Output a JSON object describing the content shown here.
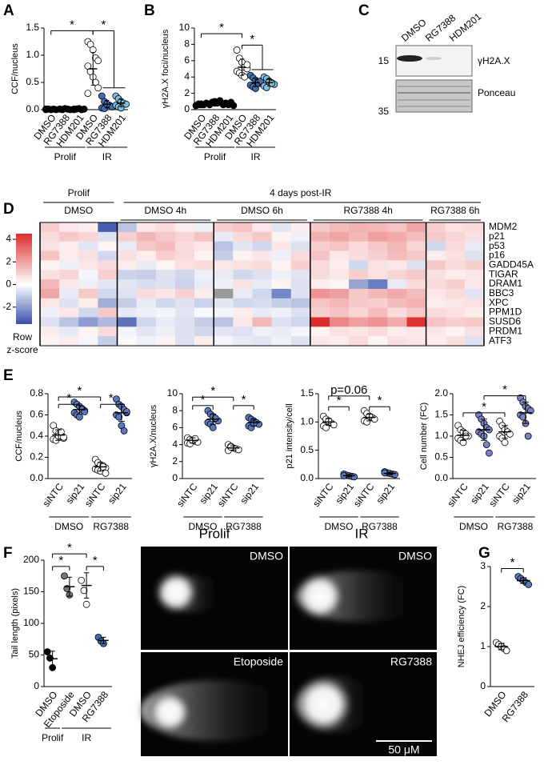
{
  "panel_labels": [
    "A",
    "B",
    "C",
    "D",
    "E",
    "F",
    "G"
  ],
  "chart_data": [
    {
      "type": "dot",
      "y_label": "CCF/nucleus",
      "ylim": [
        0,
        1.5
      ],
      "yticks": [
        {
          "value": 0,
          "label": "0.0"
        },
        0.5,
        {
          "value": 1,
          "label": "1.0"
        },
        1.5
      ],
      "categories": [
        "DMSO",
        "RG7388",
        "HDM201",
        "DMSO",
        "RG7388",
        "HDM201"
      ],
      "groups": [
        "Prolif",
        "IR"
      ],
      "colors": [
        "#000000",
        "#000000",
        "#000000",
        "#ffffff",
        "#3f6fb0",
        "#7fbfe0"
      ],
      "values": [
        [
          0,
          0.01,
          0,
          0.01,
          0,
          0.01
        ],
        [
          0.01,
          0,
          0.02,
          0.01,
          0,
          0.01
        ],
        [
          0,
          0.01,
          0.02,
          0,
          0.01,
          0.01
        ],
        [
          1.25,
          1.2,
          1.1,
          0.95,
          0.9,
          0.8,
          0.7,
          0.6,
          0.5,
          0.4,
          0.3,
          0.7
        ],
        [
          0.25,
          0.15,
          0.1,
          0.08,
          0.05,
          0.03,
          0.02,
          0.1
        ],
        [
          0.25,
          0.2,
          0.15,
          0.12,
          0.1,
          0.08,
          0.05,
          0.03
        ]
      ],
      "mean": [
        0.01,
        0.01,
        0.01,
        0.75,
        0.1,
        0.12
      ],
      "sd": [
        0.005,
        0.005,
        0.005,
        0.3,
        0.07,
        0.07
      ],
      "annotations": [
        "*",
        "*"
      ]
    },
    {
      "type": "dot",
      "y_label": "γH2A.X foci/nucleus",
      "ylim": [
        0,
        10
      ],
      "yticks": [
        0,
        2,
        4,
        6,
        8,
        10
      ],
      "categories": [
        "DMSO",
        "RG7388",
        "HDM201",
        "DMSO",
        "RG7388",
        "HDM201"
      ],
      "groups": [
        "Prolif",
        "IR"
      ],
      "colors": [
        "#000000",
        "#000000",
        "#000000",
        "#ffffff",
        "#3f6fb0",
        "#7fbfe0"
      ],
      "values": [
        [
          0.5,
          0.6,
          0.7,
          0.6,
          0.8,
          0.5,
          0.7,
          0.6
        ],
        [
          0.7,
          0.9,
          1.0,
          0.8,
          1.1,
          0.6,
          0.9,
          0.8
        ],
        [
          0.6,
          0.8,
          0.7,
          0.9,
          0.5,
          0.7,
          0.8,
          0.6
        ],
        [
          7.3,
          6.3,
          5.8,
          5.2,
          5.0,
          4.7,
          4.5,
          4.2,
          4.0,
          5.5
        ],
        [
          4.2,
          3.9,
          3.6,
          3.4,
          3.2,
          3.0,
          2.8,
          2.6,
          3.3,
          3.5
        ],
        [
          4.0,
          3.8,
          3.5,
          3.3,
          3.1,
          2.9,
          2.7,
          3.4,
          3.2
        ]
      ],
      "mean": [
        0.6,
        0.85,
        0.7,
        5.2,
        3.3,
        3.3
      ],
      "sd": [
        0.1,
        0.15,
        0.12,
        1.0,
        0.5,
        0.4
      ],
      "annotations": [
        "*",
        "*"
      ]
    },
    {
      "type": "heatmap",
      "rows": [
        "MDM2",
        "p21",
        "p53",
        "p16",
        "GADD45A",
        "TIGAR",
        "DRAM1",
        "BBC3",
        "XPC",
        "PPM1D",
        "SUSD6",
        "PRDM1",
        "ATF3"
      ],
      "headers": [
        "Prolif",
        "4 days post-IR"
      ],
      "zlim": [
        -3.5,
        4.5
      ],
      "zticks": [
        4,
        2,
        0,
        -2
      ],
      "colorbar_label": [
        "Row",
        "z-score"
      ],
      "blocks": [
        {
          "label": "DMSO",
          "values": [
            [
              0.8,
              0.4,
              0.3,
              -3.2
            ],
            [
              0.6,
              0.9,
              0.7,
              -0.6
            ],
            [
              0.5,
              0.3,
              -0.5,
              0.2
            ],
            [
              1.0,
              0.3,
              0.5,
              -0.8
            ],
            [
              0.2,
              -0.3,
              0.4,
              0.6
            ],
            [
              0.5,
              0.7,
              -0.2,
              0.8
            ],
            [
              1.2,
              0.4,
              -0.3,
              -0.5
            ],
            [
              1.5,
              -0.4,
              0.9,
              -0.8
            ],
            [
              0.4,
              -0.6,
              0.3,
              -1.6
            ],
            [
              -0.3,
              0.4,
              -0.8,
              0.9
            ],
            [
              -0.6,
              -1.2,
              -2.0,
              -1.4
            ],
            [
              0.3,
              -0.4,
              0.2,
              0.6
            ],
            [
              0.2,
              0.3,
              -0.2,
              -1.0
            ]
          ]
        },
        {
          "label": "DMSO 4h",
          "values": [
            [
              -1.2,
              0.4,
              0.6,
              0.3,
              -0.3
            ],
            [
              0.8,
              1.2,
              0.9,
              0.7,
              1.0
            ],
            [
              -0.4,
              0.9,
              1.1,
              0.6,
              0.4
            ],
            [
              0.5,
              0.3,
              0.8,
              0.6,
              0.2
            ],
            [
              0.3,
              -0.4,
              0.2,
              0.5,
              0.6
            ],
            [
              -0.9,
              -1.0,
              -0.6,
              -0.8,
              -0.3
            ],
            [
              -0.5,
              -0.7,
              -0.6,
              -0.9,
              -0.4
            ],
            [
              -0.6,
              0.6,
              0.4,
              0.8,
              0.3
            ],
            [
              -1.0,
              -0.4,
              -0.8,
              -0.6,
              -0.9
            ],
            [
              -0.4,
              -0.3,
              -0.2,
              -0.5,
              -0.1
            ],
            [
              -2.8,
              -0.8,
              -0.4,
              -0.6,
              -1.0
            ],
            [
              -0.2,
              -0.5,
              -0.3,
              -0.6,
              -0.8
            ],
            [
              0.1,
              -0.3,
              0.2,
              -0.6,
              0.3
            ]
          ]
        },
        {
          "label": "DMSO 6h",
          "values": [
            [
              0.8,
              1.0,
              0.4,
              -0.5,
              0.3
            ],
            [
              -0.4,
              0.6,
              0.9,
              0.2,
              -0.3
            ],
            [
              -1.2,
              -0.5,
              -0.8,
              0.4,
              -0.6
            ],
            [
              -1.0,
              0.2,
              0.4,
              -0.3,
              0.6
            ],
            [
              0.4,
              0.5,
              0.6,
              0.2,
              0.8
            ],
            [
              -0.4,
              -0.8,
              -0.6,
              -0.3,
              -0.5
            ],
            [
              -0.3,
              0.5,
              -0.4,
              0.2,
              -0.6
            ],
            [
              null,
              -0.4,
              -0.8,
              -2.4,
              -0.6
            ],
            [
              -0.5,
              -0.8,
              -0.7,
              -1.0,
              -1.2
            ],
            [
              -0.2,
              0.3,
              -0.4,
              -0.3,
              -0.6
            ],
            [
              -1.2,
              0.4,
              1.2,
              -0.6,
              -0.8
            ],
            [
              -0.5,
              -0.6,
              -0.3,
              -0.4,
              -0.2
            ],
            [
              -0.2,
              -0.4,
              -0.5,
              -0.3,
              -0.6
            ]
          ]
        },
        {
          "label": "RG7388 4h",
          "values": [
            [
              0.9,
              1.1,
              1.3,
              1.2,
              1.0,
              1.5
            ],
            [
              1.3,
              1.5,
              1.2,
              1.6,
              1.4,
              1.1
            ],
            [
              0.8,
              1.0,
              0.6,
              0.9,
              1.2,
              0.7
            ],
            [
              1.0,
              0.4,
              0.6,
              0.8,
              1.1,
              0.9
            ],
            [
              0.6,
              0.3,
              -0.8,
              0.5,
              0.4,
              -0.6
            ],
            [
              0.6,
              0.4,
              0.8,
              0.5,
              0.7,
              0.9
            ],
            [
              0.3,
              0.2,
              -1.8,
              -2.6,
              -0.4,
              0.6
            ],
            [
              1.8,
              1.6,
              0.9,
              1.2,
              1.4,
              1.1
            ],
            [
              1.0,
              1.2,
              0.9,
              0.8,
              1.1,
              1.3
            ],
            [
              0.8,
              1.0,
              0.7,
              1.1,
              0.6,
              0.9
            ],
            [
              3.6,
              2.0,
              1.6,
              1.8,
              1.4,
              3.4
            ],
            [
              0.2,
              0.5,
              0.4,
              0.6,
              0.3,
              0.4
            ],
            [
              0.4,
              0.3,
              0.6,
              0.2,
              0.5,
              0.4
            ]
          ]
        },
        {
          "label": "RG7388 6h",
          "values": [
            [
              0.8,
              0.5,
              0.6
            ],
            [
              0.9,
              0.7,
              0.5
            ],
            [
              -0.8,
              0.6,
              -0.4
            ],
            [
              0.3,
              0.5,
              -0.6
            ],
            [
              0.9,
              0.6,
              0.8
            ],
            [
              0.5,
              0.3,
              0.4
            ],
            [
              0.6,
              0.8,
              0.4
            ],
            [
              0.4,
              0.6,
              -0.5
            ],
            [
              0.3,
              0.4,
              0.5
            ],
            [
              0.6,
              0.5,
              0.3
            ],
            [
              1.0,
              0.8,
              0.9
            ],
            [
              0.4,
              0.2,
              0.5
            ],
            [
              0.3,
              0.5,
              -0.6
            ]
          ]
        }
      ]
    },
    {
      "type": "dot",
      "y_label": "CCF/nucleus",
      "ylim": [
        0,
        0.8
      ],
      "yticks": [
        {
          "value": 0,
          "label": "0.0"
        },
        0.2,
        0.4,
        0.6,
        0.8
      ],
      "categories": [
        "siNTC",
        "sip21",
        "siNTC",
        "sip21"
      ],
      "groups": [
        "DMSO",
        "RG7388"
      ],
      "colors": [
        "#ffffff",
        "#5a78c0",
        "#ffffff",
        "#5a78c0"
      ],
      "values": [
        [
          0.5,
          0.45,
          0.42,
          0.4,
          0.38,
          0.37,
          0.36,
          0.4,
          0.44,
          0.39
        ],
        [
          0.72,
          0.7,
          0.68,
          0.66,
          0.64,
          0.62,
          0.6,
          0.58,
          0.65,
          0.63
        ],
        [
          0.18,
          0.15,
          0.13,
          0.12,
          0.1,
          0.09,
          0.08,
          0.07,
          0.11,
          0.05
        ],
        [
          0.75,
          0.7,
          0.68,
          0.65,
          0.62,
          0.6,
          0.58,
          0.5,
          0.45,
          0.63
        ]
      ],
      "mean": [
        0.41,
        0.65,
        0.11,
        0.62
      ],
      "sd": [
        0.05,
        0.04,
        0.04,
        0.08
      ],
      "annotations": [
        "*",
        "*",
        "*"
      ]
    },
    {
      "type": "dot",
      "y_label": "γH2A.X/nucleus",
      "ylim": [
        0,
        10
      ],
      "yticks": [
        0,
        2,
        4,
        6,
        8,
        10
      ],
      "categories": [
        "siNTC",
        "sip21",
        "siNTC",
        "sip21"
      ],
      "groups": [
        "DMSO",
        "RG7388"
      ],
      "colors": [
        "#ffffff",
        "#5a78c0",
        "#ffffff",
        "#5a78c0"
      ],
      "values": [
        [
          4.8,
          4.6,
          4.5,
          4.4,
          4.3,
          4.2,
          4.1,
          4.5,
          4.7
        ],
        [
          8.0,
          7.6,
          7.3,
          7.0,
          6.8,
          6.6,
          6.4,
          6.0,
          7.1
        ],
        [
          4.0,
          3.8,
          3.6,
          3.5,
          3.4,
          3.3,
          3.7
        ],
        [
          7.2,
          7.0,
          6.8,
          6.6,
          6.4,
          6.2,
          6.0,
          6.5
        ]
      ],
      "mean": [
        4.5,
        7.0,
        3.6,
        6.6
      ],
      "sd": [
        0.3,
        0.6,
        0.25,
        0.4
      ],
      "annotations": [
        "*",
        "*",
        "*"
      ]
    },
    {
      "type": "dot",
      "y_label": "p21 intensity/cell",
      "ylim": [
        0,
        1.5
      ],
      "yticks": [
        {
          "value": 0,
          "label": "0.0"
        },
        0.5,
        {
          "value": 1,
          "label": "1.0"
        },
        1.5
      ],
      "categories": [
        "siNTC",
        "sip21",
        "siNTC",
        "sip21"
      ],
      "groups": [
        "DMSO",
        "RG7388"
      ],
      "colors": [
        "#ffffff",
        "#5a78c0",
        "#ffffff",
        "#5a78c0"
      ],
      "values": [
        [
          1.1,
          1.05,
          1.0,
          0.98,
          0.95,
          0.93,
          0.9,
          1.02
        ],
        [
          0.08,
          0.06,
          0.05,
          0.04,
          0.03,
          0.05
        ],
        [
          1.2,
          1.15,
          1.1,
          1.08,
          1.05,
          1.02,
          1.0,
          1.1
        ],
        [
          0.12,
          0.1,
          0.09,
          0.08,
          0.07,
          0.1
        ]
      ],
      "mean": [
        1.0,
        0.05,
        1.08,
        0.09
      ],
      "sd": [
        0.06,
        0.02,
        0.06,
        0.02
      ],
      "annotations": [
        "*",
        "p=0.06",
        "*"
      ]
    },
    {
      "type": "dot",
      "y_label": "Cell number (FC)",
      "ylim": [
        0,
        2
      ],
      "yticks": [
        {
          "value": 0,
          "label": "0.0"
        },
        0.5,
        {
          "value": 1,
          "label": "1.0"
        },
        1.5,
        {
          "value": 2,
          "label": "2.0"
        }
      ],
      "categories": [
        "siNTC",
        "sip21",
        "siNTC",
        "sip21"
      ],
      "groups": [
        "DMSO",
        "RG7388"
      ],
      "colors": [
        "#ffffff",
        "#7a82c8",
        "#ffffff",
        "#7a82c8"
      ],
      "values": [
        [
          1.25,
          1.15,
          1.1,
          1.05,
          1.0,
          0.95,
          0.9,
          0.85,
          1.0
        ],
        [
          1.5,
          1.4,
          1.3,
          1.2,
          1.15,
          1.1,
          1.05,
          1.0,
          0.8,
          0.6
        ],
        [
          1.35,
          1.25,
          1.15,
          1.1,
          1.05,
          1.0,
          0.95,
          0.85
        ],
        [
          1.9,
          1.8,
          1.7,
          1.65,
          1.6,
          1.5,
          1.45,
          1.3,
          1.0
        ]
      ],
      "mean": [
        1.02,
        1.15,
        1.1,
        1.55
      ],
      "sd": [
        0.12,
        0.25,
        0.15,
        0.25
      ],
      "annotations": [
        "*",
        "*"
      ]
    },
    {
      "type": "dot",
      "y_label": "Tail length (pixels)",
      "ylim": [
        0,
        200
      ],
      "yticks": [
        0,
        50,
        100,
        150,
        200
      ],
      "categories": [
        "DMSO",
        "Etoposide",
        "DMSO",
        "RG7388"
      ],
      "groups": [
        "Prolif",
        "IR"
      ],
      "colors": [
        "#000000",
        "#777777",
        "#ffffff",
        "#3f6fb0"
      ],
      "values": [
        [
          55,
          45,
          30
        ],
        [
          175,
          155,
          145
        ],
        [
          168,
          152,
          130
        ],
        [
          78,
          72,
          68
        ]
      ],
      "mean": [
        44,
        158,
        160,
        73
      ],
      "sd": [
        12,
        15,
        20,
        5
      ],
      "annotations": [
        "*",
        "*",
        "*"
      ]
    },
    {
      "type": "dot",
      "y_label": "NHEJ efficiency (FC)",
      "ylim": [
        0,
        3
      ],
      "yticks": [
        0,
        1,
        2,
        3
      ],
      "categories": [
        "DMSO",
        "RG7388"
      ],
      "groups": [],
      "colors": [
        "#ffffff",
        "#5a78c0"
      ],
      "values": [
        [
          1.1,
          1.05,
          1.0,
          0.95,
          0.9
        ],
        [
          2.75,
          2.7,
          2.65,
          2.6,
          2.55
        ]
      ],
      "mean": [
        1.0,
        2.65
      ],
      "sd": [
        0.08,
        0.07
      ],
      "annotations": [
        "*"
      ]
    }
  ],
  "blot": {
    "lanes": [
      "DMSO",
      "RG7388",
      "HDM201"
    ],
    "markers": [
      "15",
      "35"
    ],
    "labels": [
      "γH2A.X",
      "Ponceau"
    ]
  },
  "micrographs": {
    "columns": [
      "Prolif",
      "IR"
    ],
    "panels": [
      "DMSO",
      "DMSO",
      "Etoposide",
      "RG7388"
    ],
    "scale_bar": "50 μM"
  }
}
